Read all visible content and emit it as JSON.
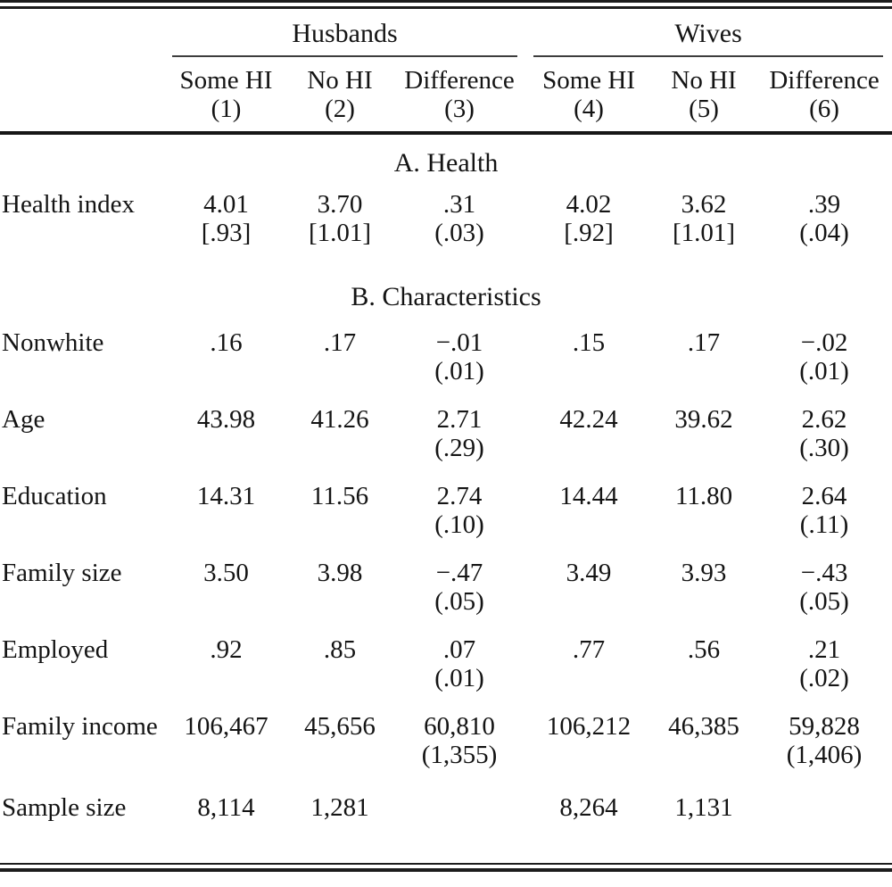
{
  "table": {
    "groups": [
      "Husbands",
      "Wives"
    ],
    "columns": [
      "Some HI",
      "No HI",
      "Difference",
      "Some HI",
      "No HI",
      "Difference"
    ],
    "col_numbers": [
      "(1)",
      "(2)",
      "(3)",
      "(4)",
      "(5)",
      "(6)"
    ],
    "sections": [
      {
        "title": "A. Health",
        "rows": [
          {
            "label": "Health index",
            "values": [
              "4.01",
              "3.70",
              ".31",
              "4.02",
              "3.62",
              ".39"
            ],
            "se": [
              "[.93]",
              "[1.01]",
              "(.03)",
              "[.92]",
              "[1.01]",
              "(.04)"
            ]
          }
        ]
      },
      {
        "title": "B. Characteristics",
        "rows": [
          {
            "label": "Nonwhite",
            "values": [
              ".16",
              ".17",
              "−.01",
              ".15",
              ".17",
              "−.02"
            ],
            "se": [
              "",
              "",
              "(.01)",
              "",
              "",
              "(.01)"
            ]
          },
          {
            "label": "Age",
            "values": [
              "43.98",
              "41.26",
              "2.71",
              "42.24",
              "39.62",
              "2.62"
            ],
            "se": [
              "",
              "",
              "(.29)",
              "",
              "",
              "(.30)"
            ]
          },
          {
            "label": "Education",
            "values": [
              "14.31",
              "11.56",
              "2.74",
              "14.44",
              "11.80",
              "2.64"
            ],
            "se": [
              "",
              "",
              "(.10)",
              "",
              "",
              "(.11)"
            ]
          },
          {
            "label": "Family size",
            "values": [
              "3.50",
              "3.98",
              "−.47",
              "3.49",
              "3.93",
              "−.43"
            ],
            "se": [
              "",
              "",
              "(.05)",
              "",
              "",
              "(.05)"
            ]
          },
          {
            "label": "Employed",
            "values": [
              ".92",
              ".85",
              ".07",
              ".77",
              ".56",
              ".21"
            ],
            "se": [
              "",
              "",
              "(.01)",
              "",
              "",
              "(.02)"
            ]
          },
          {
            "label": "Family income",
            "values": [
              "106,467",
              "45,656",
              "60,810",
              "106,212",
              "46,385",
              "59,828"
            ],
            "se": [
              "",
              "",
              "(1,355)",
              "",
              "",
              "(1,406)"
            ]
          },
          {
            "label": "Sample size",
            "values": [
              "8,114",
              "1,281",
              "",
              "8,264",
              "1,131",
              ""
            ],
            "se": null
          }
        ]
      }
    ]
  }
}
